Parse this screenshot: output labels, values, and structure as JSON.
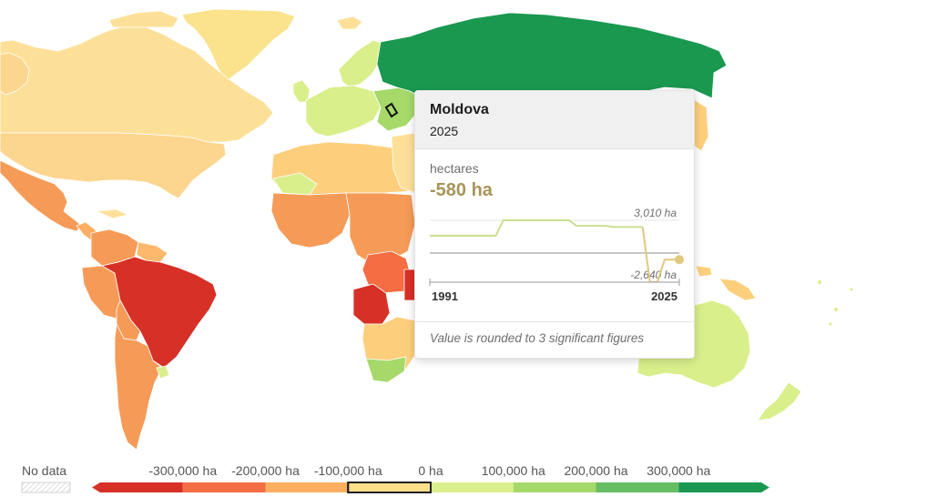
{
  "tooltip": {
    "country": "Moldova",
    "year": "2025",
    "unit": "hectares",
    "value": "-580 ha",
    "spark_max_label": "3,010 ha",
    "spark_min_label": "-2,640 ha",
    "start_year": "1991",
    "end_year": "2025",
    "note": "Value is rounded to 3 significant figures",
    "series": {
      "years": [
        1991,
        2000,
        2001,
        2010,
        2011,
        2015,
        2016,
        2020,
        2021,
        2022,
        2023,
        2025
      ],
      "values": [
        1600,
        1600,
        3010,
        3010,
        2500,
        2500,
        2400,
        2400,
        -2640,
        -2640,
        -580,
        -580
      ]
    }
  },
  "legend": {
    "no_data_label": "No data",
    "tick_labels": [
      "-300,000 ha",
      "-200,000 ha",
      "-100,000 ha",
      "0 ha",
      "100,000 ha",
      "200,000 ha",
      "300,000 ha"
    ],
    "bins": [
      {
        "color": "#d73027"
      },
      {
        "color": "#f46d43"
      },
      {
        "color": "#fdae61"
      },
      {
        "color": "#fee08b",
        "selected": true
      },
      {
        "color": "#d9ef8b"
      },
      {
        "color": "#a6d96a"
      },
      {
        "color": "#66bd63"
      },
      {
        "color": "#1a9850"
      }
    ]
  },
  "map_colors": {
    "ocean": "#ffffff",
    "border": "#ffffff",
    "greenland": "#fbe28c",
    "canada": "#fde098",
    "usa": "#fcd58f",
    "mexico": "#f59b57",
    "brazil": "#d73027",
    "russia": "#1a9850",
    "australia": "#d9ef8b",
    "angola": "#d73027"
  }
}
